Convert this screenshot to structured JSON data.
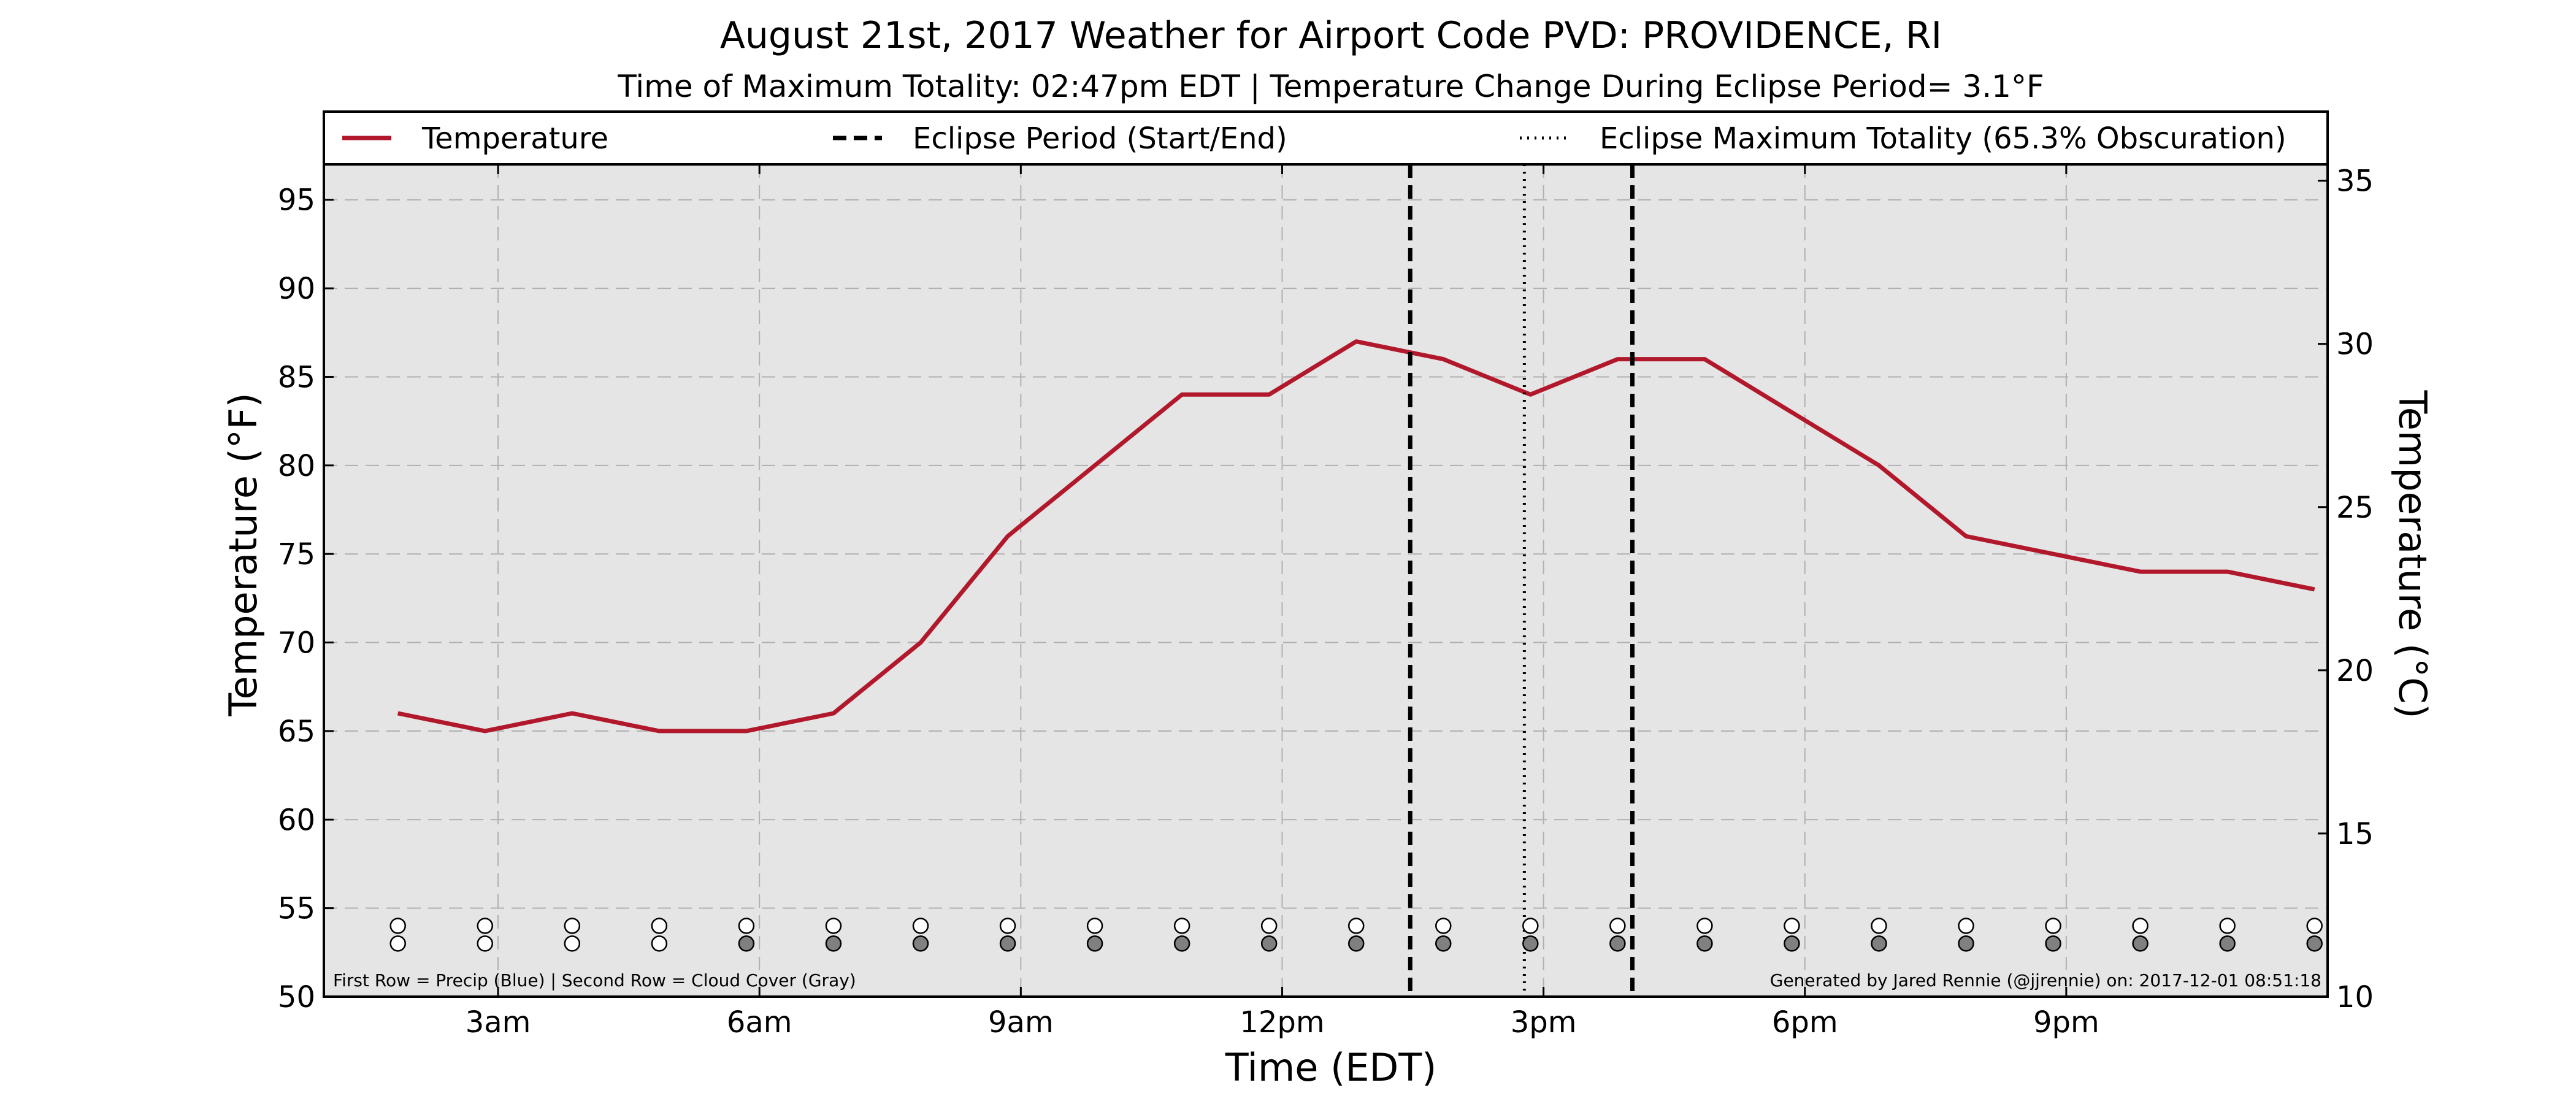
{
  "chart_data": {
    "type": "line",
    "title": "August 21st, 2017 Weather for Airport Code PVD: PROVIDENCE, RI",
    "subtitle": "Time of Maximum Totality: 02:47pm EDT | Temperature Change During Eclipse Period= 3.1$^\\circ$F",
    "subtitle_display": "Time of Maximum Totality: 02:47pm EDT | Temperature Change During Eclipse Period= 3.1°F",
    "xlabel": "Time (EDT)",
    "ylabel": "Temperature (°F)",
    "ylabel_right": "Temperature (°C)",
    "xlim": [
      1.0,
      24.0
    ],
    "ylim": [
      50,
      97
    ],
    "ylim_right": [
      10,
      35.5
    ],
    "x_ticks": [
      {
        "x": 3,
        "label": "3am"
      },
      {
        "x": 6,
        "label": "6am"
      },
      {
        "x": 9,
        "label": "9am"
      },
      {
        "x": 12,
        "label": "12pm"
      },
      {
        "x": 15,
        "label": "3pm"
      },
      {
        "x": 18,
        "label": "6pm"
      },
      {
        "x": 21,
        "label": "9pm"
      }
    ],
    "y_ticks": [
      50,
      55,
      60,
      65,
      70,
      75,
      80,
      85,
      90,
      95
    ],
    "y_ticks_right": [
      10,
      15,
      20,
      25,
      30,
      35
    ],
    "grid": true,
    "grid_x": [
      3,
      6,
      9,
      12,
      15,
      18,
      21
    ],
    "legend_placement": "top",
    "legend": [
      {
        "label": "Temperature",
        "style": "solid",
        "color": "#b2182b"
      },
      {
        "label": "Eclipse Period (Start/End)",
        "style": "dashed",
        "color": "#000000"
      },
      {
        "label": "Eclipse Maximum Totality (65.3% Obscuration)",
        "style": "dotted",
        "color": "#000000"
      }
    ],
    "series": [
      {
        "name": "Temperature",
        "color": "#b2182b",
        "x": [
          1.85,
          2.85,
          3.85,
          4.85,
          5.85,
          6.85,
          7.85,
          8.85,
          9.85,
          10.85,
          11.85,
          12.85,
          13.85,
          14.85,
          15.85,
          16.85,
          17.85,
          18.85,
          19.85,
          20.85,
          21.85,
          22.85,
          23.85
        ],
        "y": [
          66,
          65,
          66,
          65,
          65,
          66,
          70,
          76,
          80,
          84,
          84,
          87,
          86,
          84,
          86,
          86,
          83,
          80,
          76,
          75,
          74,
          74,
          73
        ]
      }
    ],
    "eclipse_start": 13.47,
    "eclipse_max": 14.78,
    "eclipse_end": 16.02,
    "precip_row": {
      "x": [
        1.85,
        2.85,
        3.85,
        4.85,
        5.85,
        6.85,
        7.85,
        8.85,
        9.85,
        10.85,
        11.85,
        12.85,
        13.85,
        14.85,
        15.85,
        16.85,
        17.85,
        18.85,
        19.85,
        20.85,
        21.85,
        22.85,
        23.85
      ],
      "y": 54.0,
      "filled": [
        false,
        false,
        false,
        false,
        false,
        false,
        false,
        false,
        false,
        false,
        false,
        false,
        false,
        false,
        false,
        false,
        false,
        false,
        false,
        false,
        false,
        false,
        false
      ]
    },
    "cloud_row": {
      "x": [
        1.85,
        2.85,
        3.85,
        4.85,
        5.85,
        6.85,
        7.85,
        8.85,
        9.85,
        10.85,
        11.85,
        12.85,
        13.85,
        14.85,
        15.85,
        16.85,
        17.85,
        18.85,
        19.85,
        20.85,
        21.85,
        22.85,
        23.85
      ],
      "y": 53.0,
      "filled": [
        false,
        false,
        false,
        false,
        true,
        true,
        true,
        true,
        true,
        true,
        true,
        true,
        true,
        true,
        true,
        true,
        true,
        true,
        true,
        true,
        true,
        true,
        true
      ]
    },
    "notes": {
      "left": "First Row = Precip (Blue) | Second Row = Cloud Cover (Gray)",
      "right": "Generated by Jared Rennie (@jjrennie) on: 2017-12-01 08:51:18"
    },
    "colors": {
      "plot_background": "#e5e5e5",
      "grid": "#b0b0b0",
      "temperature": "#b2182b",
      "cloud_fill": "#808080",
      "precip_fill": "#4a6fb5"
    }
  }
}
